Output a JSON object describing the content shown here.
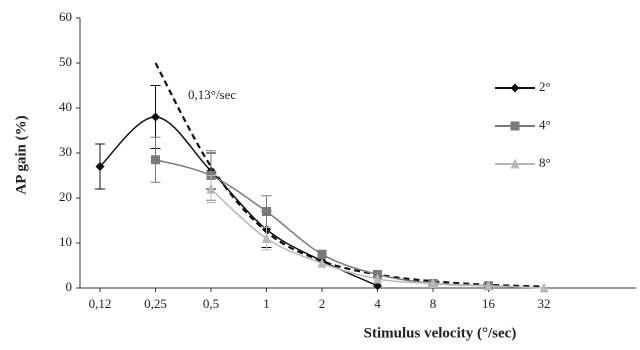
{
  "chart_data": {
    "type": "line",
    "ylabel": "AP gain (%)",
    "xlabel": "Stimulus velocity (°/sec)",
    "categories": [
      "0,12",
      "0,25",
      "0,5",
      "1",
      "2",
      "4",
      "8",
      "16",
      "32"
    ],
    "ylim": [
      0,
      60
    ],
    "yticks": [
      0,
      10,
      20,
      30,
      40,
      50,
      60
    ],
    "legend": "right",
    "series": [
      {
        "name": "2°",
        "color": "#111111",
        "marker": "diamond",
        "values": [
          27,
          38,
          26,
          13,
          6,
          0.5,
          null,
          null,
          null
        ],
        "errors": [
          5,
          7,
          4,
          4,
          null,
          null,
          null,
          null,
          null
        ]
      },
      {
        "name": "4°",
        "color": "#7a7a7a",
        "marker": "square",
        "values": [
          null,
          28.5,
          25,
          17,
          7.5,
          3,
          1,
          0.5,
          null
        ],
        "errors": [
          null,
          5,
          5.5,
          3.5,
          null,
          null,
          null,
          null,
          null
        ]
      },
      {
        "name": "8°",
        "color": "#b8b8b8",
        "marker": "triangle",
        "values": [
          null,
          null,
          22,
          11,
          5.5,
          2,
          1,
          0.5,
          0
        ],
        "errors": [
          null,
          null,
          3,
          2.5,
          null,
          null,
          null,
          null,
          null
        ]
      }
    ],
    "model": {
      "label": "0,13°/sec",
      "color": "#111111",
      "values": [
        null,
        50,
        27,
        12.5,
        6,
        3,
        1.5,
        0.7,
        0.3
      ]
    }
  }
}
